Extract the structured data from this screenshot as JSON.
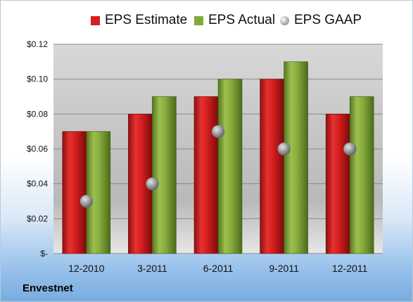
{
  "company": "Envestnet",
  "colors": {
    "estimate": "#d51f1f",
    "actual": "#83a93a",
    "gaap": "#9c9c9c"
  },
  "chart_data": {
    "type": "bar",
    "categories": [
      "12-2010",
      "3-2011",
      "6-2011",
      "9-2011",
      "12-2011"
    ],
    "series": [
      {
        "name": "EPS Estimate",
        "kind": "bar",
        "values": [
          0.07,
          0.08,
          0.09,
          0.1,
          0.08
        ]
      },
      {
        "name": "EPS Actual",
        "kind": "bar",
        "values": [
          0.07,
          0.09,
          0.1,
          0.11,
          0.09
        ]
      },
      {
        "name": "EPS GAAP",
        "kind": "marker",
        "values": [
          0.03,
          0.04,
          0.07,
          0.06,
          0.06
        ]
      }
    ],
    "ylim": [
      0,
      0.12
    ],
    "yticks": [
      0,
      0.02,
      0.04,
      0.06,
      0.08,
      0.1,
      0.12
    ],
    "ytick_labels": [
      "$-",
      "$0.02",
      "$0.04",
      "$0.06",
      "$0.08",
      "$0.10",
      "$0.12"
    ],
    "legend": "top",
    "grid": true
  }
}
